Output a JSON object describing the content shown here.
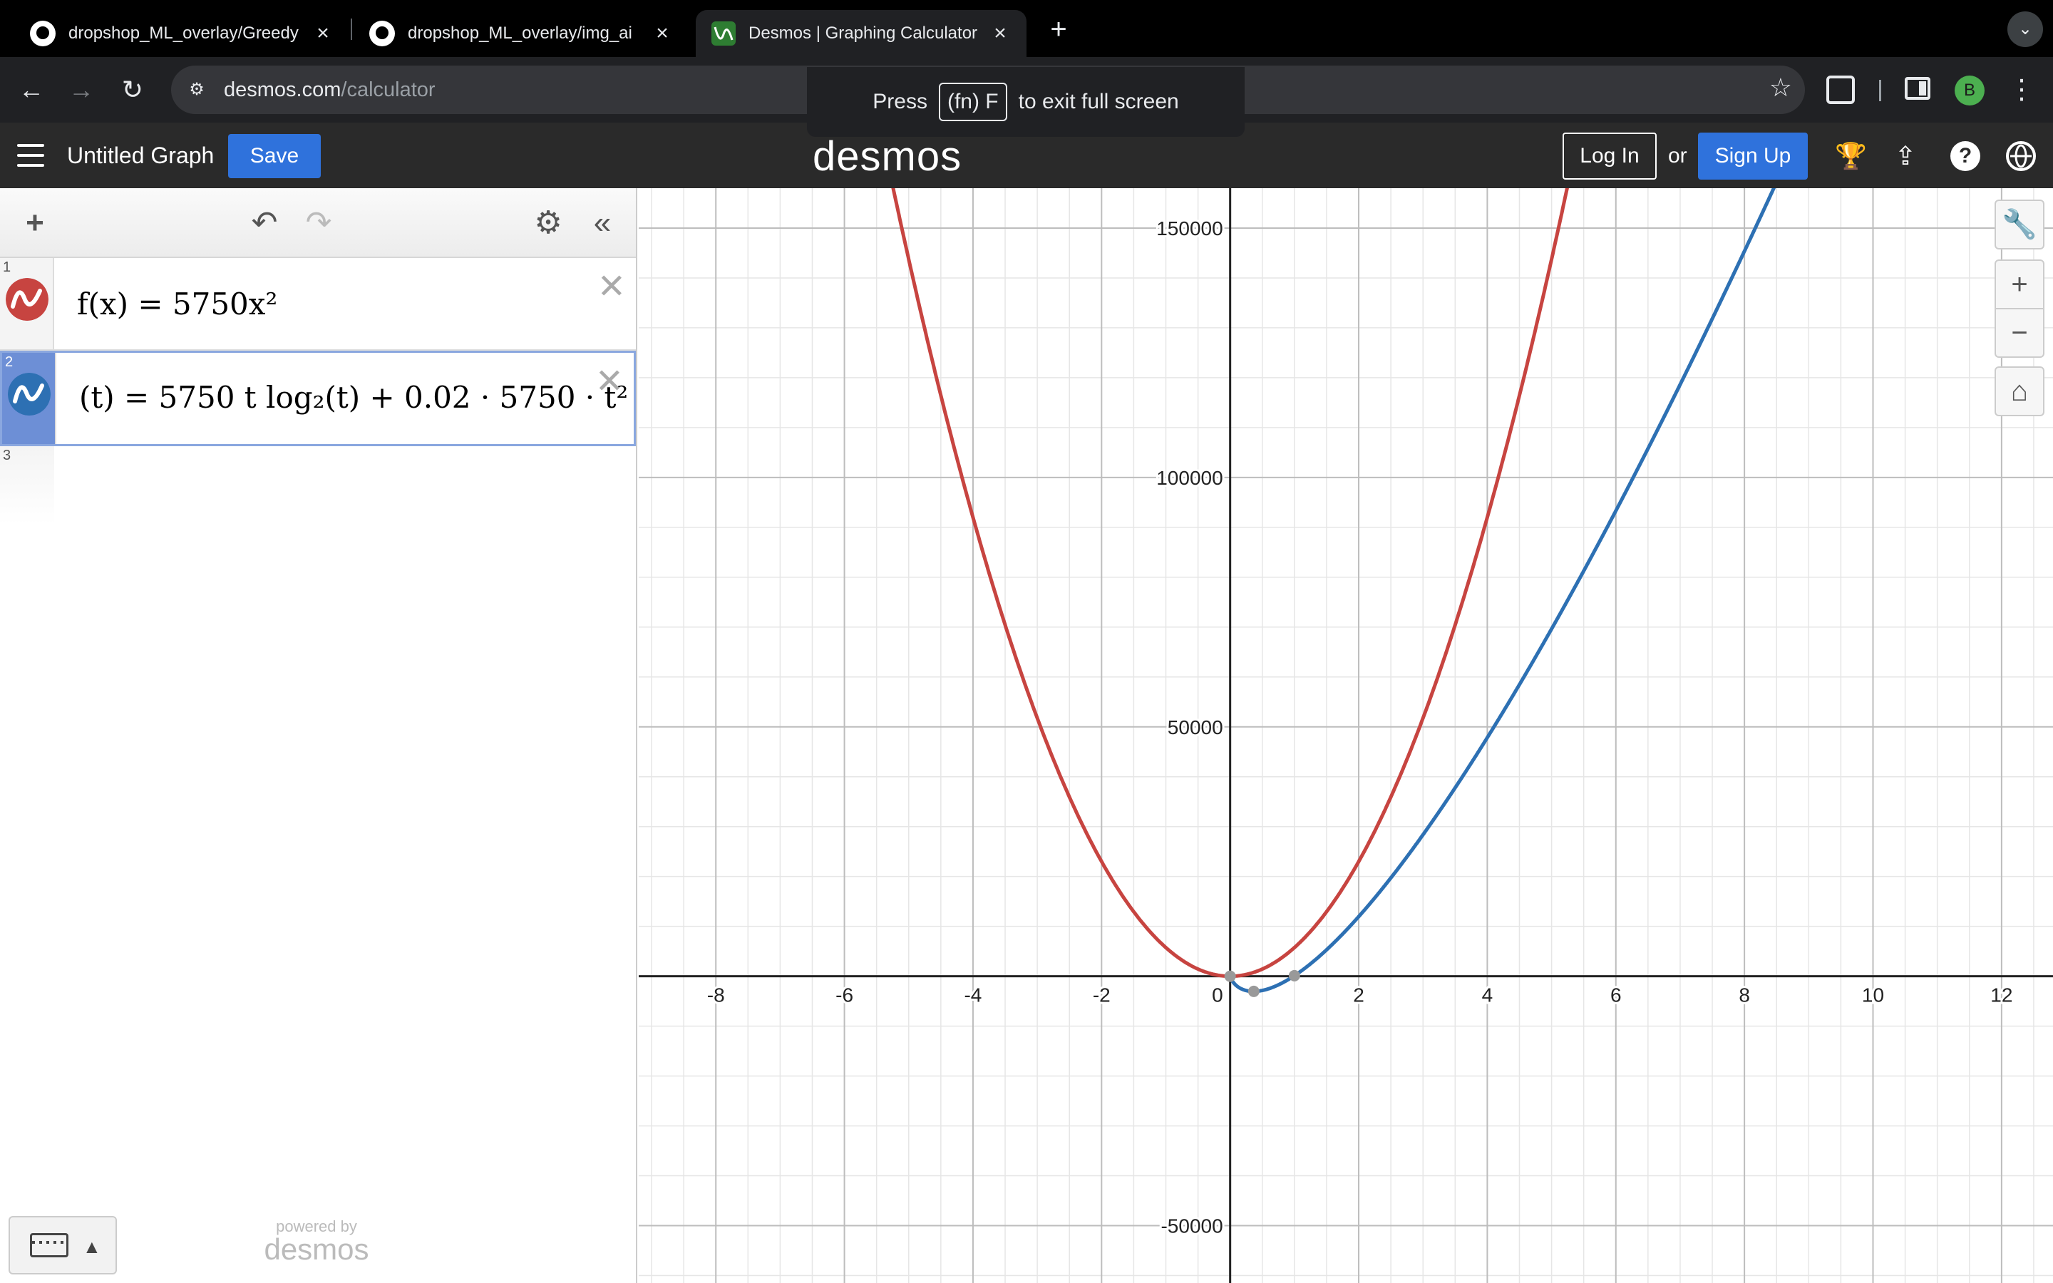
{
  "browser": {
    "tabs": [
      {
        "title": "dropshop_ML_overlay/Greedy",
        "icon": "github-icon",
        "active": false
      },
      {
        "title": "dropshop_ML_overlay/img_ai",
        "icon": "github-icon",
        "active": false
      },
      {
        "title": "Desmos | Graphing Calculator",
        "icon": "desmos-icon",
        "active": true
      }
    ],
    "new_tab": "+",
    "url_host": "desmos.com",
    "url_path": "/calculator",
    "profile_initial": "B",
    "fullscreen_toast": {
      "prefix": "Press",
      "key": "(fn) F",
      "suffix": "to exit full screen"
    }
  },
  "header": {
    "title": "Untitled Graph",
    "save": "Save",
    "logo": "desmos",
    "login": "Log In",
    "or": "or",
    "signup": "Sign Up"
  },
  "expressions": [
    {
      "index": "1",
      "color": "#c74440",
      "latex_display": "f(x) = 5750x²"
    },
    {
      "index": "2",
      "color": "#2d70b3",
      "latex_display": "(t) = 5750 t log₂(t) + 0.02 · 5750 · t²"
    },
    {
      "index": "3"
    }
  ],
  "powered_by": {
    "line1": "powered by",
    "line2": "desmos"
  },
  "graph": {
    "x_range": [
      -9.2,
      12.8
    ],
    "y_range": [
      -61500,
      158000
    ],
    "x_major_step": 2,
    "x_minor_step": 0.5,
    "y_major_step": 50000,
    "y_minor_step": 10000,
    "x_tick_labels": [
      "-8",
      "-6",
      "-4",
      "-2",
      "0",
      "2",
      "4",
      "6",
      "8",
      "10",
      "12"
    ],
    "y_tick_labels": [
      "150000",
      "100000",
      "50000",
      "-50000"
    ],
    "curves": [
      {
        "name": "f(x) = 5750x²",
        "color": "#c74440",
        "kind": "square",
        "coef": 5750
      },
      {
        "name": "(t) = 5750 t log₂(t) + 0.02 · 5750 · t²",
        "color": "#2d70b3",
        "kind": "tlogt",
        "coef": 5750,
        "quad": 0.02
      }
    ],
    "points_color": "#999999"
  }
}
